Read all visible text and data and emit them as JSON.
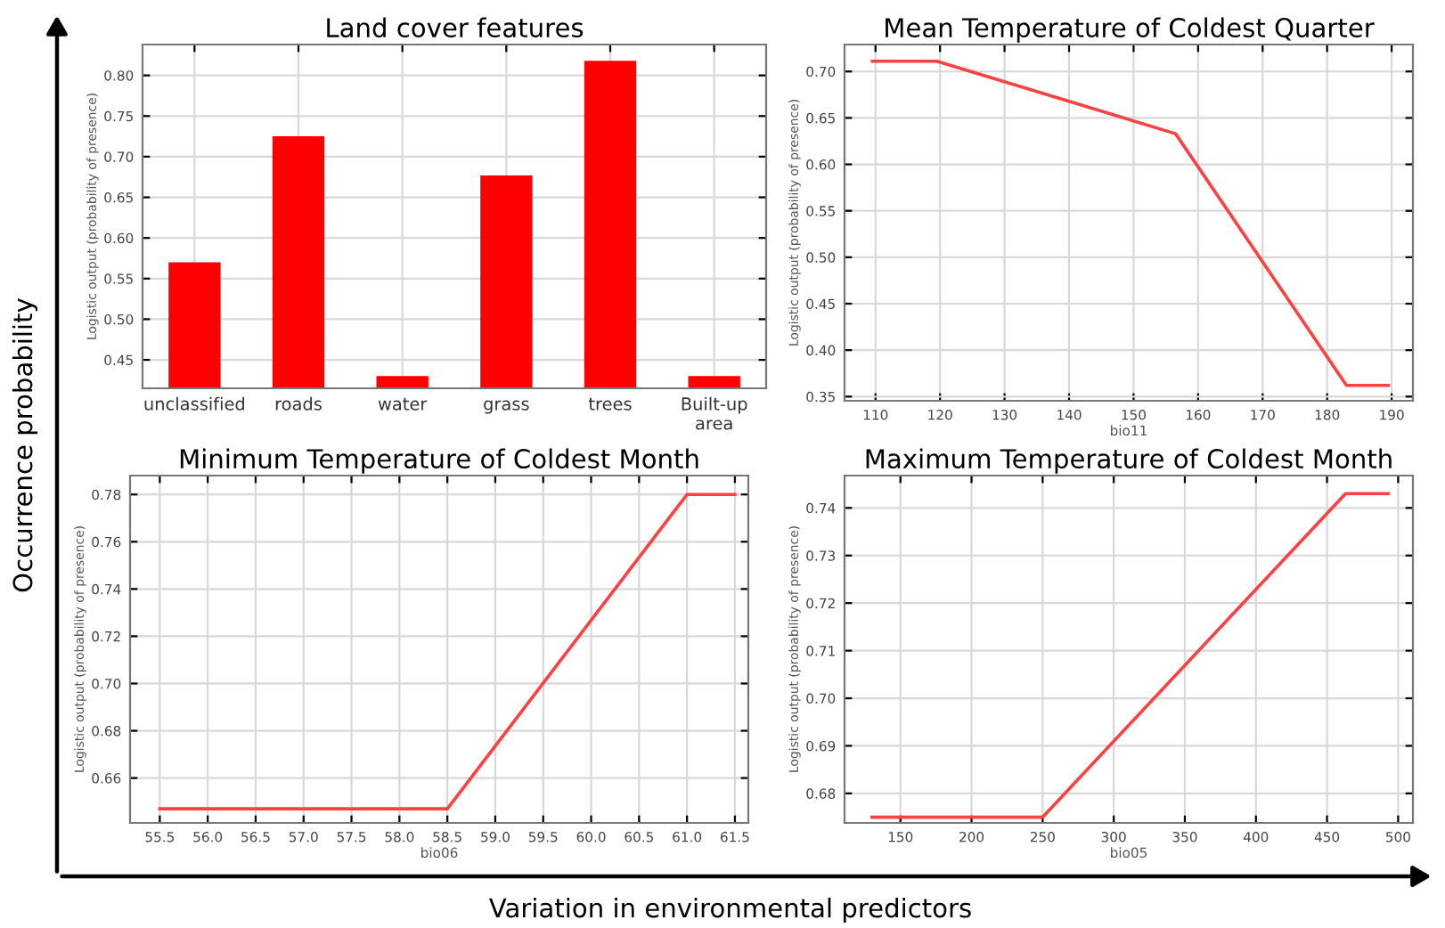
{
  "chart_data": [
    {
      "type": "bar",
      "title": "Land cover features",
      "ylabel": "Logistic output (probability of presence)",
      "categories": [
        "unclassified",
        "roads",
        "water",
        "grass",
        "trees",
        "Built-up\narea"
      ],
      "values": [
        0.57,
        0.725,
        0.43,
        0.677,
        0.818,
        0.43
      ],
      "color": "#ff0000",
      "ylim": [
        0.415,
        0.838
      ],
      "yticks": [
        0.45,
        {
          "value": 0.5,
          "label": "0.50"
        },
        0.55,
        {
          "value": 0.6,
          "label": "0.60"
        },
        0.65,
        {
          "value": 0.7,
          "label": "0.70"
        },
        0.75,
        {
          "value": 0.8,
          "label": "0.80"
        }
      ],
      "grid": true,
      "annotations": [
        "Occurrence probability",
        "Variation in environmental predictors"
      ]
    },
    {
      "type": "line",
      "title": "Mean Temperature of Coldest Quarter",
      "xlabel": "bio11",
      "ylabel": "Logistic output (probability of presence)",
      "x": [
        109.5,
        119.5,
        156.5,
        183,
        189.5
      ],
      "values": [
        0.711,
        0.711,
        0.633,
        0.362,
        0.362
      ],
      "color": "#ff4040",
      "xlim": [
        105.2,
        193.3
      ],
      "xticks": [
        110,
        120,
        130,
        140,
        150,
        160,
        170,
        180,
        190
      ],
      "ylim": [
        0.3455,
        0.729
      ],
      "yticks": [
        0.35,
        {
          "value": 0.4,
          "label": "0.40"
        },
        0.45,
        {
          "value": 0.5,
          "label": "0.50"
        },
        0.55,
        {
          "value": 0.6,
          "label": "0.60"
        },
        0.65,
        {
          "value": 0.7,
          "label": "0.70"
        }
      ],
      "grid": true
    },
    {
      "type": "line",
      "title": "Minimum Temperature of Coldest Month",
      "xlabel": "bio06",
      "ylabel": "Logistic output (probability of presence)",
      "x": [
        55.5,
        58.5,
        61.0,
        61.5
      ],
      "values": [
        0.647,
        0.647,
        0.78,
        0.78
      ],
      "color": "#ff4040",
      "xlim": [
        55.19,
        61.64
      ],
      "xticks": [
        55.5,
        {
          "value": 56,
          "label": "56.0"
        },
        56.5,
        {
          "value": 57,
          "label": "57.0"
        },
        57.5,
        {
          "value": 58,
          "label": "58.0"
        },
        58.5,
        {
          "value": 59,
          "label": "59.0"
        },
        59.5,
        {
          "value": 60,
          "label": "60.0"
        },
        60.5,
        {
          "value": 61,
          "label": "61.0"
        },
        61.5
      ],
      "ylim": [
        0.641,
        0.788
      ],
      "yticks": [
        0.66,
        0.68,
        {
          "value": 0.7,
          "label": "0.70"
        },
        0.72,
        0.74,
        0.76,
        0.78
      ],
      "grid": true
    },
    {
      "type": "line",
      "title": "Maximum Temperature of Coldest Month",
      "xlabel": "bio05",
      "ylabel": "Logistic output (probability of presence)",
      "x": [
        130,
        250,
        463,
        493
      ],
      "values": [
        0.675,
        0.675,
        0.743,
        0.743
      ],
      "color": "#ff4040",
      "xlim": [
        110.7,
        510.4
      ],
      "xticks": [
        150,
        200,
        250,
        300,
        350,
        400,
        450,
        500
      ],
      "ylim": [
        0.6738,
        0.7468
      ],
      "yticks": [
        0.68,
        0.69,
        {
          "value": 0.7,
          "label": "0.70"
        },
        0.71,
        0.72,
        0.73,
        0.74
      ],
      "grid": true
    }
  ]
}
